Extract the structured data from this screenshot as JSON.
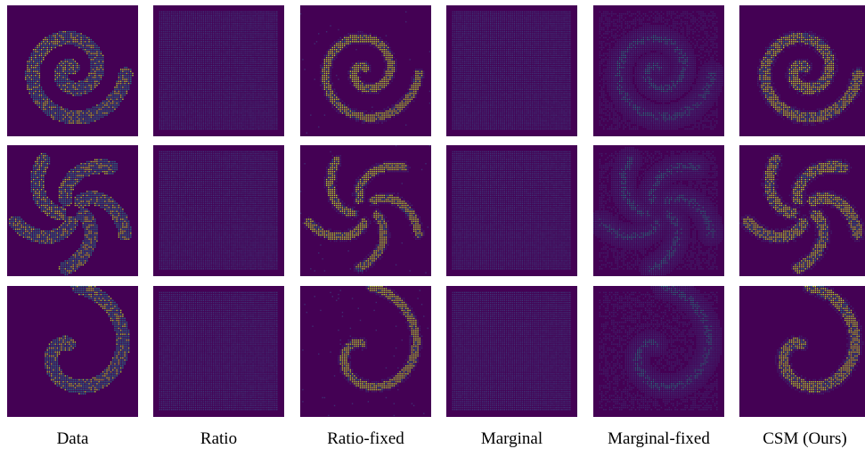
{
  "figure": {
    "columns": [
      {
        "key": "data",
        "label": "Data"
      },
      {
        "key": "ratio",
        "label": "Ratio"
      },
      {
        "key": "ratio_fixed",
        "label": "Ratio-fixed"
      },
      {
        "key": "marginal",
        "label": "Marginal"
      },
      {
        "key": "marginal_fixed",
        "label": "Marginal-fixed"
      },
      {
        "key": "csm",
        "label": "CSM (Ours)"
      }
    ],
    "rows": [
      {
        "key": "swiss-roll-spiral"
      },
      {
        "key": "pinwheel"
      },
      {
        "key": "single-spiral"
      }
    ],
    "colors": {
      "background": "#440154",
      "density_low": "#3b528b",
      "density_mid": "#21918c",
      "density_high": "#b5de2b"
    }
  }
}
